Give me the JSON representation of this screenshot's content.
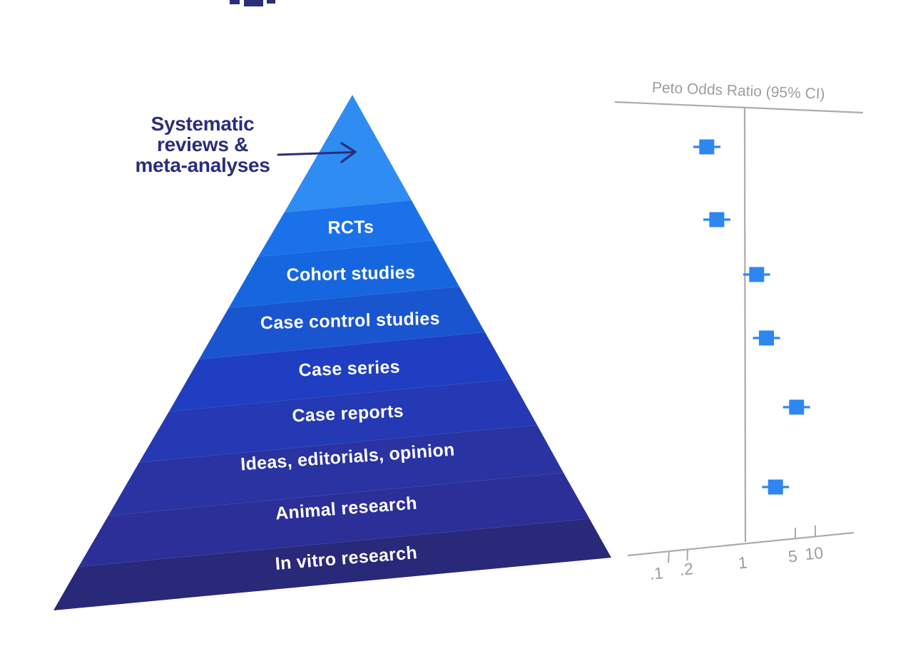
{
  "annotation": {
    "lines": [
      "Systematic",
      "reviews &",
      "meta-analyses"
    ],
    "color": "#2B2D7B"
  },
  "pyramid": {
    "label_color": "#FFFFFF",
    "levels": [
      {
        "label": "Systematic reviews & meta-analyses",
        "color": "#2F8CF2",
        "label_placement": "external-annotation"
      },
      {
        "label": "RCTs",
        "color": "#1B71E9"
      },
      {
        "label": "Cohort studies",
        "color": "#1667DF"
      },
      {
        "label": "Case control studies",
        "color": "#1A55D0"
      },
      {
        "label": "Case series",
        "color": "#1F3EC1"
      },
      {
        "label": "Case reports",
        "color": "#2439B3"
      },
      {
        "label": "Ideas, editorials, opinion",
        "color": "#2933A2"
      },
      {
        "label": "Animal research",
        "color": "#2C2F97"
      },
      {
        "label": "In vitro research",
        "color": "#2A2879"
      }
    ]
  },
  "forest_plot": {
    "title": "Peto Odds Ratio (95% CI)",
    "axis_color": "#ABABAB",
    "label_color": "#9D9D9D",
    "marker_color": "#2E86F0",
    "tick_labels": [
      ".1",
      ".2",
      "1",
      "5",
      "10"
    ]
  },
  "chart_data": {
    "type": "scatter",
    "title": "Peto Odds Ratio (95% CI)",
    "x_scale": "log",
    "x_ticks": [
      0.1,
      0.2,
      1,
      5,
      10
    ],
    "x_range": [
      0.05,
      20
    ],
    "reference_line_x": 1,
    "legend": "none",
    "grid": false,
    "points": [
      {
        "or": 0.28,
        "ci_low": 0.18,
        "ci_high": 0.44
      },
      {
        "or": 0.39,
        "ci_low": 0.25,
        "ci_high": 0.61
      },
      {
        "or": 1.45,
        "ci_low": 0.93,
        "ci_high": 2.26
      },
      {
        "or": 2.0,
        "ci_low": 1.28,
        "ci_high": 3.12
      },
      {
        "or": 5.4,
        "ci_low": 3.46,
        "ci_high": 8.43
      },
      {
        "or": 2.7,
        "ci_low": 1.73,
        "ci_high": 4.21
      }
    ]
  }
}
